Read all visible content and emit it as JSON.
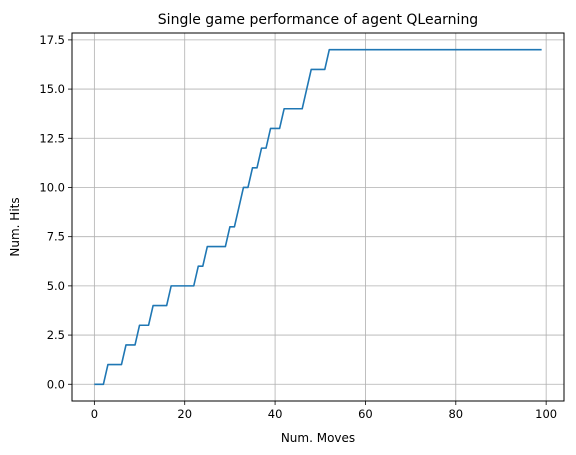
{
  "chart_data": {
    "type": "line",
    "title": "Single game performance of agent QLearning",
    "xlabel": "Num. Moves",
    "ylabel": "Num. Hits",
    "xlim": [
      -4.95,
      103.95
    ],
    "ylim": [
      -0.85,
      17.85
    ],
    "xticks": [
      0,
      20,
      40,
      60,
      80,
      100
    ],
    "yticks": [
      0.0,
      2.5,
      5.0,
      7.5,
      10.0,
      12.5,
      15.0,
      17.5
    ],
    "xtick_labels": [
      "0",
      "20",
      "40",
      "60",
      "80",
      "100"
    ],
    "ytick_labels": [
      "0.0",
      "2.5",
      "5.0",
      "7.5",
      "10.0",
      "12.5",
      "15.0",
      "17.5"
    ],
    "grid": true,
    "series": [
      {
        "color": "#1f77b4",
        "x": [
          0,
          1,
          2,
          3,
          4,
          5,
          6,
          7,
          8,
          9,
          10,
          11,
          12,
          13,
          14,
          15,
          16,
          17,
          18,
          19,
          20,
          21,
          22,
          23,
          24,
          25,
          26,
          27,
          28,
          29,
          30,
          31,
          32,
          33,
          34,
          35,
          36,
          37,
          38,
          39,
          40,
          41,
          42,
          43,
          44,
          45,
          46,
          47,
          48,
          49,
          50,
          51,
          52,
          53,
          54,
          55,
          56,
          57,
          58,
          59,
          60,
          61,
          62,
          63,
          64,
          65,
          66,
          67,
          68,
          69,
          70,
          71,
          72,
          73,
          74,
          75,
          76,
          77,
          78,
          79,
          80,
          81,
          82,
          83,
          84,
          85,
          86,
          87,
          88,
          89,
          90,
          91,
          92,
          93,
          94,
          95,
          96,
          97,
          98,
          99
        ],
        "values": [
          0,
          0,
          0,
          1,
          1,
          1,
          1,
          2,
          2,
          2,
          3,
          3,
          3,
          4,
          4,
          4,
          4,
          5,
          5,
          5,
          5,
          5,
          5,
          6,
          6,
          7,
          7,
          7,
          7,
          7,
          8,
          8,
          9,
          10,
          10,
          11,
          11,
          12,
          12,
          13,
          13,
          13,
          14,
          14,
          14,
          14,
          14,
          15,
          16,
          16,
          16,
          16,
          17,
          17,
          17,
          17,
          17,
          17,
          17,
          17,
          17,
          17,
          17,
          17,
          17,
          17,
          17,
          17,
          17,
          17,
          17,
          17,
          17,
          17,
          17,
          17,
          17,
          17,
          17,
          17,
          17,
          17,
          17,
          17,
          17,
          17,
          17,
          17,
          17,
          17,
          17,
          17,
          17,
          17,
          17,
          17,
          17,
          17,
          17,
          17
        ]
      }
    ]
  }
}
